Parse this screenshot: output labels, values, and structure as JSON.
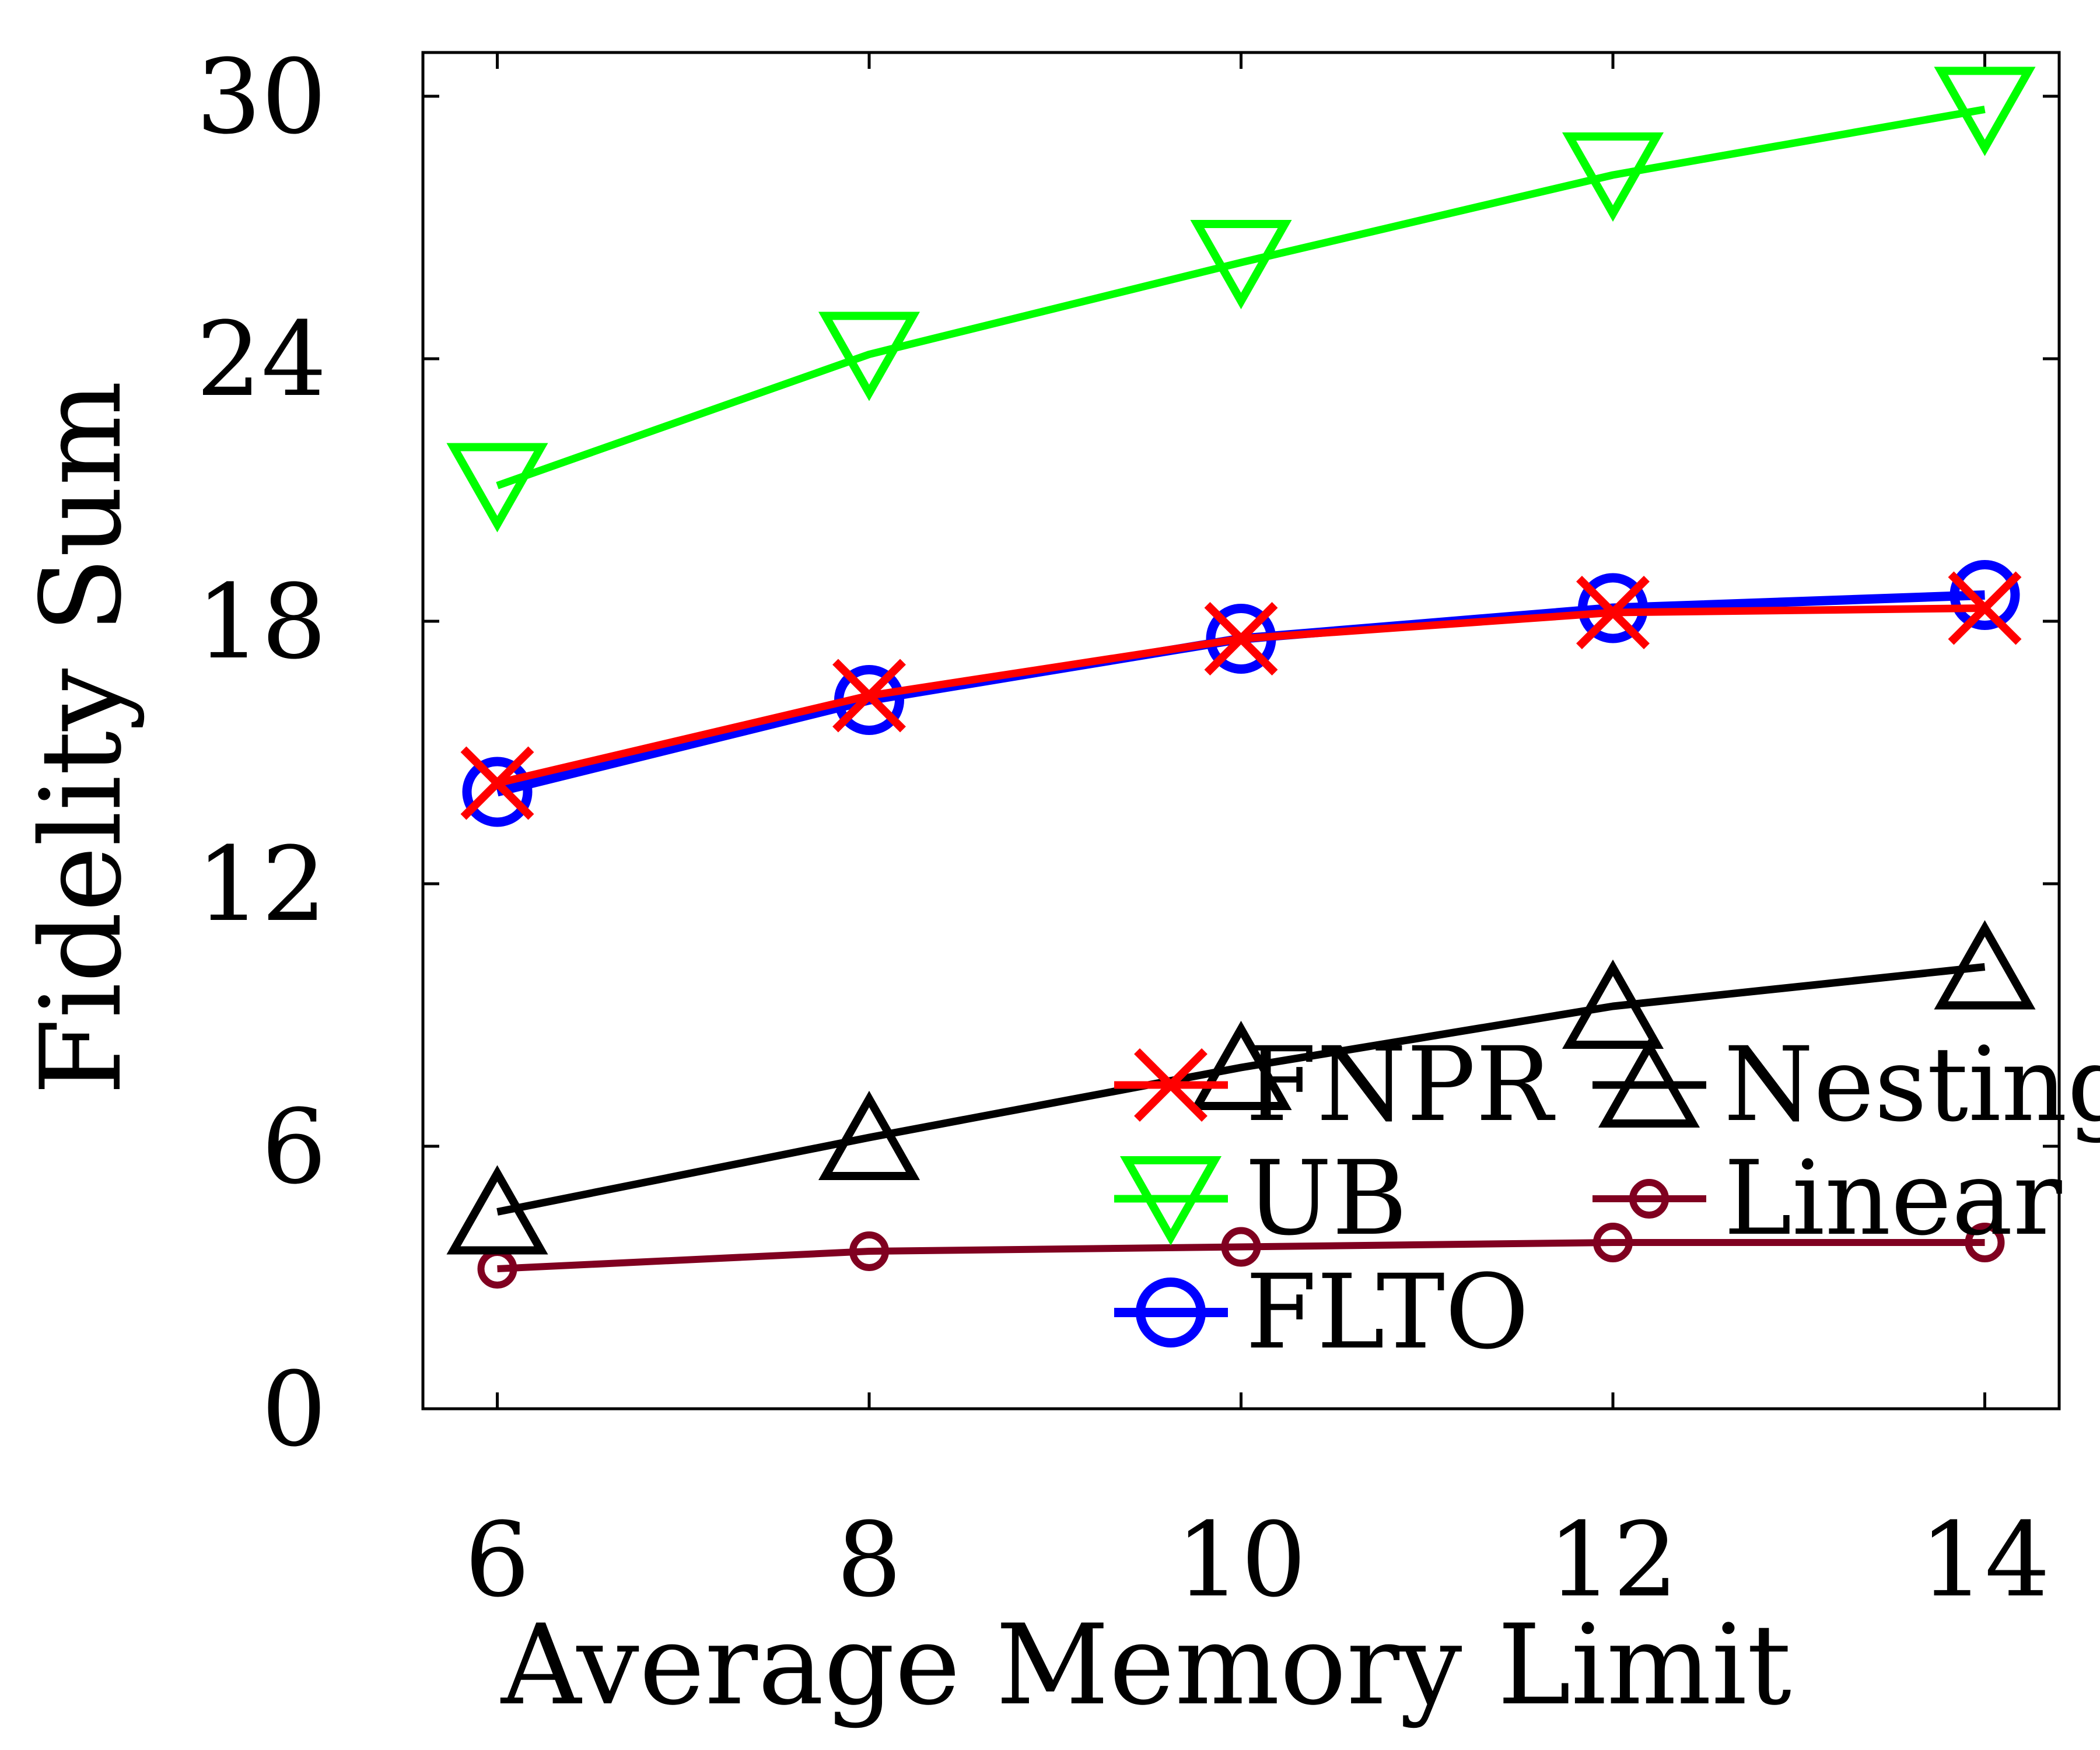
{
  "chart_data": {
    "type": "line",
    "xlabel": "Average Memory Limit",
    "ylabel": "Fidelity Sum",
    "x": [
      6,
      8,
      10,
      12,
      14
    ],
    "xlim": [
      5.6,
      14.4
    ],
    "ylim": [
      0,
      31
    ],
    "x_ticks": [
      6,
      8,
      10,
      12,
      14
    ],
    "y_ticks": [
      0,
      6,
      12,
      18,
      24,
      30
    ],
    "x_tick_labels": [
      "6",
      "8",
      "10",
      "12",
      "14"
    ],
    "y_tick_labels": [
      "0",
      "6",
      "12",
      "18",
      "24",
      "30"
    ],
    "grid": false,
    "legend_position": "bottom-right",
    "series": [
      {
        "name": "FNPR",
        "values": [
          14.3,
          16.3,
          17.6,
          18.2,
          18.3
        ],
        "color": "#ff0000",
        "marker": "x"
      },
      {
        "name": "UB",
        "values": [
          21.1,
          24.1,
          26.2,
          28.2,
          29.7
        ],
        "color": "#00ff00",
        "marker": "triangle-down"
      },
      {
        "name": "FLTO",
        "values": [
          14.1,
          16.2,
          17.6,
          18.3,
          18.6
        ],
        "color": "#0000ff",
        "marker": "circle"
      },
      {
        "name": "Nesting",
        "values": [
          4.5,
          6.2,
          7.8,
          9.2,
          10.1
        ],
        "color": "#000000",
        "marker": "triangle-up"
      },
      {
        "name": "Linear",
        "values": [
          3.2,
          3.6,
          3.7,
          3.8,
          3.8
        ],
        "color": "#800020",
        "marker": "small-circle"
      }
    ],
    "legend_order": [
      [
        "FNPR",
        "Nesting"
      ],
      [
        "UB",
        "Linear"
      ],
      [
        "FLTO"
      ]
    ]
  }
}
